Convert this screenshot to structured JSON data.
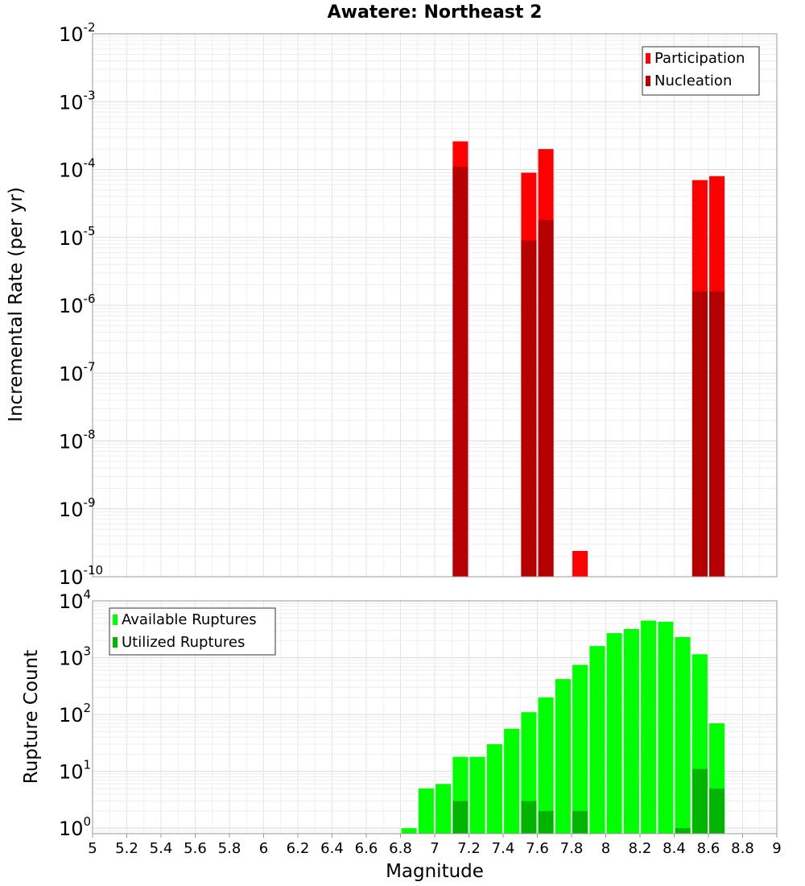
{
  "chart_data": [
    {
      "type": "bar",
      "title": "Awatere: Northeast 2",
      "xlabel": "",
      "ylabel": "Incremental Rate (per yr)",
      "yscale": "log",
      "ylim": [
        1e-10,
        0.01
      ],
      "xlim": [
        5,
        9
      ],
      "grid": true,
      "legend_position": "top-right",
      "series": [
        {
          "name": "Participation",
          "color": "#ff0000",
          "x": [
            7.15,
            7.55,
            7.65,
            7.85,
            8.55,
            8.65
          ],
          "values": [
            0.00026,
            9e-05,
            0.0002,
            2.4e-10,
            7e-05,
            8e-05
          ]
        },
        {
          "name": "Nucleation",
          "color": "#b40000",
          "x": [
            7.15,
            7.55,
            7.65,
            8.55,
            8.65
          ],
          "values": [
            0.00011,
            9e-06,
            1.8e-05,
            1.6e-06,
            1.6e-06
          ]
        }
      ]
    },
    {
      "type": "bar",
      "title": "",
      "xlabel": "Magnitude",
      "ylabel": "Rupture Count",
      "yscale": "log",
      "ylim": [
        0.8,
        10000
      ],
      "xlim": [
        5,
        9
      ],
      "grid": true,
      "legend_position": "top-left",
      "x_ticks": [
        "5",
        "5.2",
        "5.4",
        "5.6",
        "5.8",
        "6",
        "6.2",
        "6.4",
        "6.6",
        "6.8",
        "7",
        "7.2",
        "7.4",
        "7.6",
        "7.8",
        "8",
        "8.2",
        "8.4",
        "8.6",
        "8.8",
        "9"
      ],
      "series": [
        {
          "name": "Available Ruptures",
          "color": "#00ff00",
          "x": [
            6.85,
            6.95,
            7.05,
            7.15,
            7.25,
            7.35,
            7.45,
            7.55,
            7.65,
            7.75,
            7.85,
            7.95,
            8.05,
            8.15,
            8.25,
            8.35,
            8.45,
            8.55,
            8.65
          ],
          "values": [
            1,
            5,
            6,
            18,
            18,
            30,
            56,
            110,
            200,
            420,
            750,
            1600,
            2700,
            3200,
            4500,
            4300,
            2300,
            1150,
            70
          ]
        },
        {
          "name": "Utilized Ruptures",
          "color": "#00b400",
          "x": [
            7.15,
            7.55,
            7.65,
            7.85,
            8.45,
            8.55,
            8.65
          ],
          "values": [
            3,
            3,
            2,
            2,
            1,
            11,
            5
          ]
        }
      ]
    }
  ]
}
